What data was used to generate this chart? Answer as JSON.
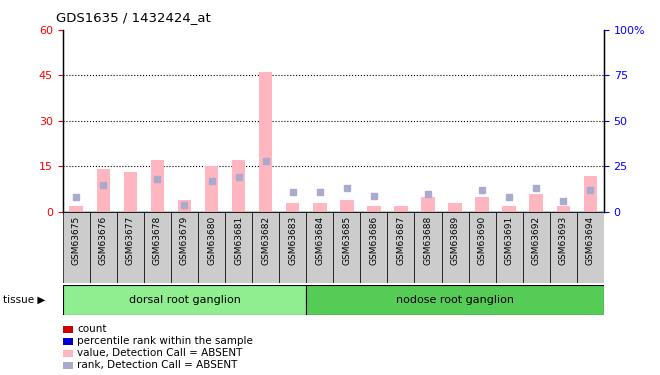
{
  "title": "GDS1635 / 1432424_at",
  "samples": [
    "GSM63675",
    "GSM63676",
    "GSM63677",
    "GSM63678",
    "GSM63679",
    "GSM63680",
    "GSM63681",
    "GSM63682",
    "GSM63683",
    "GSM63684",
    "GSM63685",
    "GSM63686",
    "GSM63687",
    "GSM63688",
    "GSM63689",
    "GSM63690",
    "GSM63691",
    "GSM63692",
    "GSM63693",
    "GSM63694"
  ],
  "values_absent": [
    2,
    14,
    13,
    17,
    4,
    15,
    17,
    46,
    3,
    3,
    4,
    2,
    2,
    5,
    3,
    5,
    2,
    6,
    2,
    12
  ],
  "ranks_absent": [
    8,
    15,
    null,
    18,
    4,
    17,
    19,
    28,
    11,
    11,
    13,
    9,
    null,
    10,
    null,
    12,
    8,
    13,
    6,
    12
  ],
  "dorsal_count": 9,
  "nodose_count": 11,
  "tissue_groups": [
    {
      "label": "dorsal root ganglion",
      "start": 0,
      "end": 9,
      "color": "#90EE90"
    },
    {
      "label": "nodose root ganglion",
      "start": 9,
      "end": 20,
      "color": "#55CC55"
    }
  ],
  "ylim_left": [
    0,
    60
  ],
  "ylim_right": [
    0,
    100
  ],
  "yticks_left": [
    0,
    15,
    30,
    45,
    60
  ],
  "yticks_right": [
    0,
    25,
    50,
    75,
    100
  ],
  "bar_color_absent": "#FFB6C1",
  "rank_color_absent": "#AAAACC",
  "bg_color": "#FFFFFF",
  "cell_bg": "#DDDDDD",
  "legend_items": [
    {
      "label": "count",
      "color": "#CC0000"
    },
    {
      "label": "percentile rank within the sample",
      "color": "#0000CC"
    },
    {
      "label": "value, Detection Call = ABSENT",
      "color": "#FFB6C1"
    },
    {
      "label": "rank, Detection Call = ABSENT",
      "color": "#AAAACC"
    }
  ]
}
